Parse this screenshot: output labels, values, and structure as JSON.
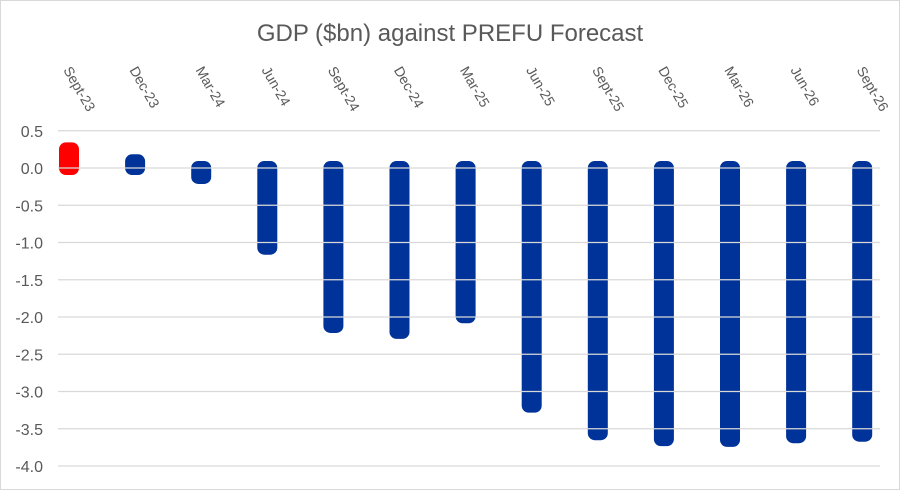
{
  "chart_data": {
    "type": "bar",
    "title": "GDP ($bn) against PREFU Forecast",
    "xlabel": "",
    "ylabel": "",
    "ylim": [
      -4.0,
      0.5
    ],
    "yticks": [
      "0.5",
      "0.0",
      "-0.5",
      "-1.0",
      "-1.5",
      "-2.0",
      "-2.5",
      "-3.0",
      "-3.5",
      "-4.0"
    ],
    "ytick_values": [
      0.5,
      0.0,
      -0.5,
      -1.0,
      -1.5,
      -2.0,
      -2.5,
      -3.0,
      -3.5,
      -4.0
    ],
    "grid": true,
    "x_axis_position": "top",
    "categories": [
      "Sept-23",
      "Dec-23",
      "Mar-24",
      "Jun-24",
      "Sept-24",
      "Dec-24",
      "Mar-25",
      "Jun-25",
      "Sept-25",
      "Dec-25",
      "Mar-26",
      "Jun-26",
      "Sept-26"
    ],
    "values": [
      0.25,
      0.09,
      -0.12,
      -1.07,
      -2.12,
      -2.2,
      -1.99,
      -3.19,
      -3.56,
      -3.64,
      -3.65,
      -3.6,
      -3.58
    ],
    "colors": [
      "#ff0000",
      "#003399",
      "#003399",
      "#003399",
      "#003399",
      "#003399",
      "#003399",
      "#003399",
      "#003399",
      "#003399",
      "#003399",
      "#003399",
      "#003399"
    ]
  }
}
